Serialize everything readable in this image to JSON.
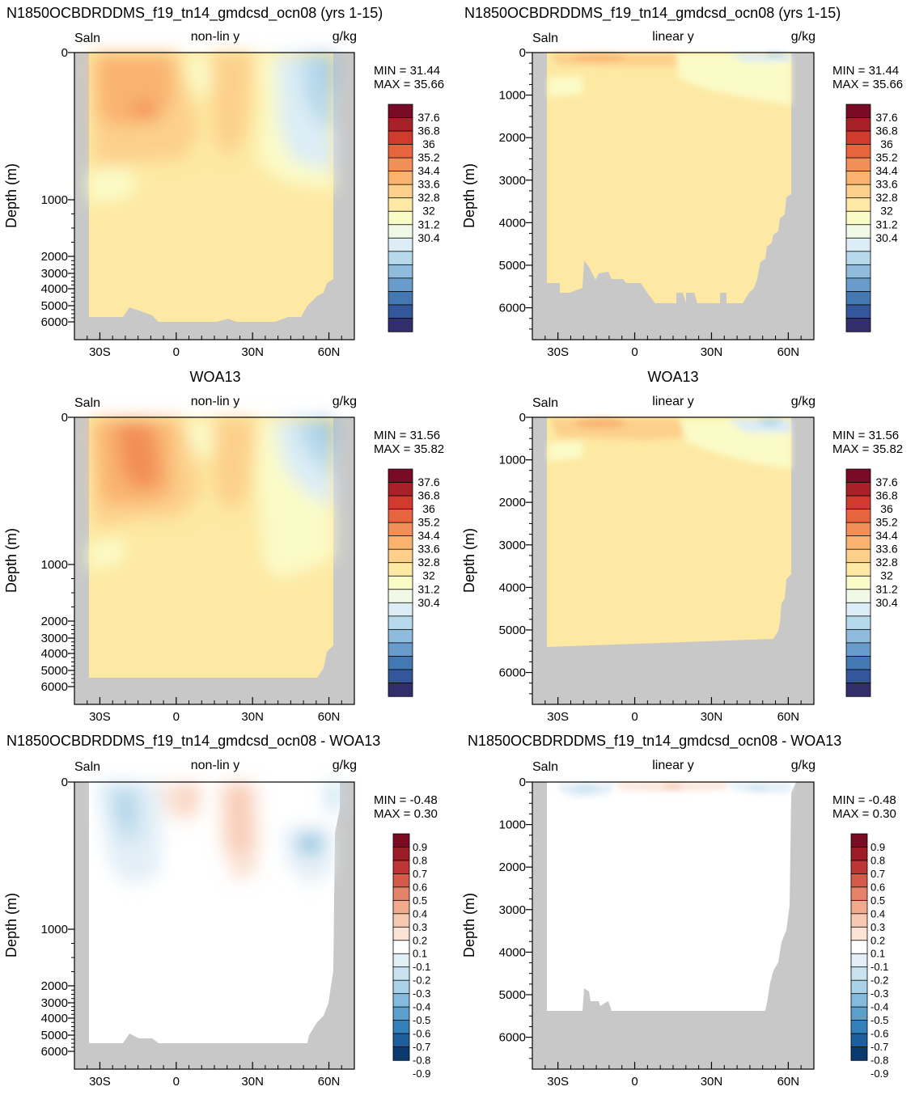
{
  "colors": {
    "land": "#c8c8c8",
    "full_scale": [
      "#312e6b",
      "#34569a",
      "#4478b2",
      "#6a9ccb",
      "#8fbcdc",
      "#b7d9ec",
      "#dcedf5",
      "#f0f8e6",
      "#fbfbc8",
      "#fde9a3",
      "#fcd08b",
      "#f9b36f",
      "#f28e57",
      "#e8643f",
      "#d13b2d",
      "#a82028",
      "#7a0b27"
    ],
    "diff_scale": [
      "#0b3a6e",
      "#1c5f9c",
      "#3380ba",
      "#5b9fcc",
      "#83bade",
      "#a9d1e8",
      "#c9e2f0",
      "#e3eff7",
      "#ffffff",
      "#fbe3d6",
      "#f8c9b2",
      "#f3a98b",
      "#e5836a",
      "#d45a49",
      "#bd3535",
      "#9c1c28",
      "#7b0a23"
    ]
  },
  "panels": [
    {
      "id": "model-nonlin",
      "title": "N1850OCBDRDDMS_f19_tn14_gmdcsd_ocn08 (yrs 1-15)",
      "var": "Saln",
      "mode": "non-lin y",
      "units": "g/kg",
      "min": "MIN =  31.44",
      "max": "MAX =  35.66",
      "scale": "full"
    },
    {
      "id": "model-lin",
      "title": "N1850OCBDRDDMS_f19_tn14_gmdcsd_ocn08 (yrs 1-15)",
      "var": "Saln",
      "mode": "linear y",
      "units": "g/kg",
      "min": "MIN =  31.44",
      "max": "MAX =  35.66",
      "scale": "full"
    },
    {
      "id": "obs-nonlin",
      "title": "WOA13",
      "var": "Saln",
      "mode": "non-lin y",
      "units": "g/kg",
      "min": "MIN =  31.56",
      "max": "MAX =  35.82",
      "scale": "full"
    },
    {
      "id": "obs-lin",
      "title": "WOA13",
      "var": "Saln",
      "mode": "linear y",
      "units": "g/kg",
      "min": "MIN =  31.56",
      "max": "MAX =  35.82",
      "scale": "full"
    },
    {
      "id": "diff-nonlin",
      "title": "N1850OCBDRDDMS_f19_tn14_gmdcsd_ocn08 - WOA13",
      "var": "Saln",
      "mode": "non-lin y",
      "units": "g/kg",
      "min": "MIN =  -0.48",
      "max": "MAX =   0.30",
      "scale": "diff"
    },
    {
      "id": "diff-lin",
      "title": "N1850OCBDRDDMS_f19_tn14_gmdcsd_ocn08 - WOA13",
      "var": "Saln",
      "mode": "linear y",
      "units": "g/kg",
      "min": "MIN =  -0.48",
      "max": "MAX =   0.30",
      "scale": "diff"
    }
  ],
  "chart_data": {
    "type": "heatmap",
    "ylabel": "Depth (m)",
    "x_ticks": [
      "30S",
      "0",
      "30N",
      "60N"
    ],
    "x_tick_values": [
      -30,
      0,
      30,
      60
    ],
    "xlim": [
      -40,
      70
    ],
    "nonlin_y_ticks": [
      "0",
      "1000",
      "2000",
      "3000",
      "4000",
      "5000",
      "6000"
    ],
    "lin_y_ticks": [
      "0",
      "1000",
      "2000",
      "3000",
      "4000",
      "5000",
      "6000"
    ],
    "lin_ylim": [
      0,
      6750
    ],
    "full_colorbar_labels": [
      "37.6",
      "36.8",
      "36",
      "35.2",
      "34.4",
      "33.6",
      "32.8",
      "32",
      "31.2",
      "30.4"
    ],
    "diff_colorbar_labels": [
      "0.9",
      "0.8",
      "0.7",
      "0.6",
      "0.5",
      "0.4",
      "0.3",
      "0.2",
      "0.1",
      "-0.1",
      "-0.2",
      "-0.3",
      "-0.4",
      "-0.5",
      "-0.6",
      "-0.7",
      "-0.8",
      "-0.9"
    ]
  }
}
